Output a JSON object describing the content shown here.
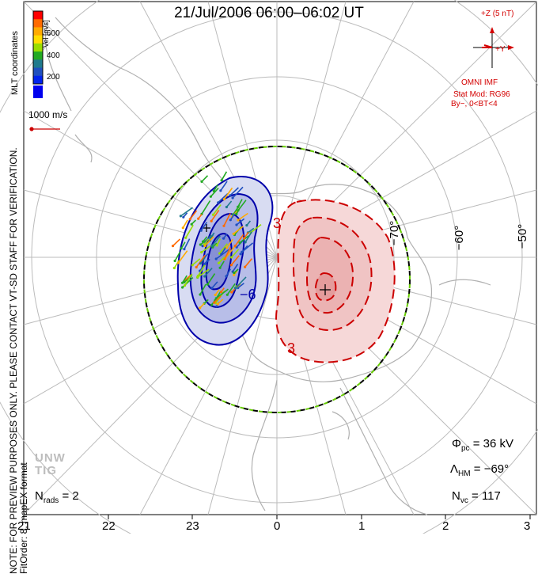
{
  "title": "21/Jul/2006 06:00–06:02 UT",
  "notes": {
    "line1": "NOTE: FOR PREVIEW PURPOSES ONLY. PLEASE CONTACT VT-SD STAFF FOR VERIFICATION.",
    "line2": "FitOrder: 8, mapEX format",
    "coords": "MLT coordinates"
  },
  "colorbar": {
    "unit": "Vel [m/s]",
    "ticks": [
      "600",
      "400",
      "200"
    ],
    "colors": [
      "#ff0000",
      "#ff6a00",
      "#ffaa00",
      "#ffdd00",
      "#99dd00",
      "#22aa22",
      "#1f7a8c",
      "#1f4fbf",
      "#0022ee"
    ]
  },
  "scale_vector": {
    "label": "1000 m/s"
  },
  "imf": {
    "z_label": "+Z (5 nT)",
    "y_label": "+Y",
    "source": "OMNI IMF",
    "model": "Stat Mod: RG96",
    "condition": "By−, 0<BT<4"
  },
  "stats": {
    "phi_pc": "Φ",
    "phi_pc_sub": "pc",
    "phi_pc_value": " = 36 kV",
    "lambda_hm": "Λ",
    "lambda_hm_sub": "HM",
    "lambda_hm_value": " = −69°",
    "n_vc": "N",
    "n_vc_sub": "vc",
    "n_vc_value": " = 117",
    "n_rads": "N",
    "n_rads_sub": "rads",
    "n_rads_value": " = 2"
  },
  "watermark": {
    "line1": "UNW",
    "line2": "TIG"
  },
  "mlt_ticks": [
    "21",
    "22",
    "23",
    "0",
    "1",
    "2",
    "3"
  ],
  "lat_labels": [
    "−70°",
    "−60°",
    "−50°"
  ],
  "contour_labels": {
    "neg": "−6",
    "pos_top": "3",
    "pos_bottom": "3"
  },
  "style": {
    "negative_cell": "#0000aa",
    "positive_cell": "#cc0000",
    "boundary_green": "#66cc00",
    "imf_red": "#d40000"
  }
}
